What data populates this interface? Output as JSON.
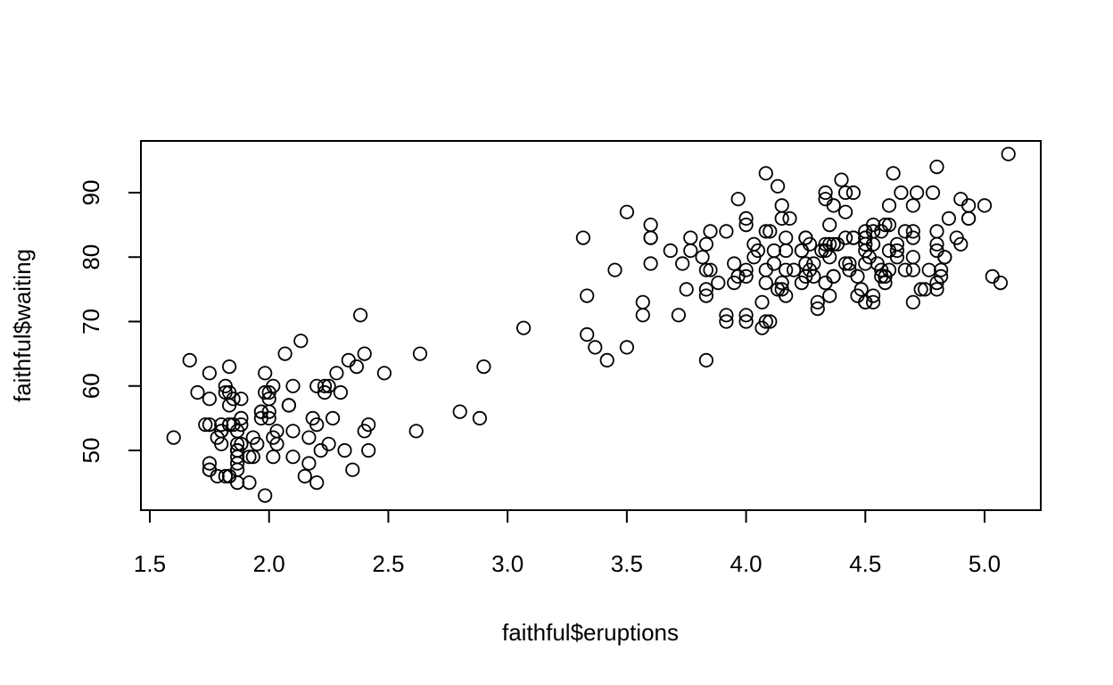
{
  "chart_data": {
    "type": "scatter",
    "title": "",
    "xlabel": "faithful$eruptions",
    "ylabel": "faithful$waiting",
    "xlim": [
      1.5,
      5.2
    ],
    "ylim": [
      41,
      97
    ],
    "grid": false,
    "marker": "open-circle",
    "colors": {
      "point": "#000000",
      "axis": "#000000",
      "background": "#ffffff"
    },
    "x_ticks": [
      1.5,
      2.0,
      2.5,
      3.0,
      3.5,
      4.0,
      4.5,
      5.0
    ],
    "x_tick_labels": [
      "1.5",
      "2.0",
      "2.5",
      "3.0",
      "3.5",
      "4.0",
      "4.5",
      "5.0"
    ],
    "y_ticks": [
      50,
      60,
      70,
      80,
      90
    ],
    "y_tick_labels": [
      "50",
      "60",
      "70",
      "80",
      "90"
    ],
    "series": [
      {
        "name": "faithful",
        "points": [
          [
            3.6,
            79
          ],
          [
            1.8,
            54
          ],
          [
            3.333,
            74
          ],
          [
            2.283,
            62
          ],
          [
            4.533,
            85
          ],
          [
            2.883,
            55
          ],
          [
            4.7,
            88
          ],
          [
            3.6,
            85
          ],
          [
            1.95,
            51
          ],
          [
            4.35,
            85
          ],
          [
            1.833,
            54
          ],
          [
            3.917,
            84
          ],
          [
            4.2,
            78
          ],
          [
            1.75,
            47
          ],
          [
            4.7,
            83
          ],
          [
            2.167,
            52
          ],
          [
            1.75,
            62
          ],
          [
            4.8,
            84
          ],
          [
            1.6,
            52
          ],
          [
            4.25,
            79
          ],
          [
            1.8,
            51
          ],
          [
            1.75,
            47
          ],
          [
            3.45,
            78
          ],
          [
            3.067,
            69
          ],
          [
            4.533,
            74
          ],
          [
            3.6,
            83
          ],
          [
            1.967,
            55
          ],
          [
            4.083,
            76
          ],
          [
            3.85,
            78
          ],
          [
            4.433,
            79
          ],
          [
            4.3,
            73
          ],
          [
            4.467,
            77
          ],
          [
            3.367,
            66
          ],
          [
            4.033,
            80
          ],
          [
            3.833,
            74
          ],
          [
            2.017,
            52
          ],
          [
            1.867,
            48
          ],
          [
            4.833,
            80
          ],
          [
            1.833,
            59
          ],
          [
            4.783,
            90
          ],
          [
            4.35,
            80
          ],
          [
            1.883,
            58
          ],
          [
            4.567,
            84
          ],
          [
            1.75,
            58
          ],
          [
            4.533,
            73
          ],
          [
            3.317,
            83
          ],
          [
            3.833,
            64
          ],
          [
            2.1,
            53
          ],
          [
            4.633,
            82
          ],
          [
            2.0,
            59
          ],
          [
            4.8,
            75
          ],
          [
            4.716,
            90
          ],
          [
            1.833,
            54
          ],
          [
            4.833,
            80
          ],
          [
            1.733,
            54
          ],
          [
            4.883,
            83
          ],
          [
            3.717,
            71
          ],
          [
            1.667,
            64
          ],
          [
            4.567,
            77
          ],
          [
            4.317,
            81
          ],
          [
            2.233,
            59
          ],
          [
            4.5,
            84
          ],
          [
            1.75,
            48
          ],
          [
            4.8,
            82
          ],
          [
            1.817,
            60
          ],
          [
            4.4,
            92
          ],
          [
            4.167,
            78
          ],
          [
            4.7,
            78
          ],
          [
            2.067,
            65
          ],
          [
            4.7,
            73
          ],
          [
            4.033,
            82
          ],
          [
            1.967,
            56
          ],
          [
            4.5,
            79
          ],
          [
            4.0,
            71
          ],
          [
            1.983,
            62
          ],
          [
            5.067,
            76
          ],
          [
            2.017,
            60
          ],
          [
            4.567,
            78
          ],
          [
            3.883,
            76
          ],
          [
            3.6,
            83
          ],
          [
            4.133,
            75
          ],
          [
            4.333,
            82
          ],
          [
            4.1,
            70
          ],
          [
            2.633,
            65
          ],
          [
            4.067,
            73
          ],
          [
            4.933,
            88
          ],
          [
            3.95,
            76
          ],
          [
            4.517,
            80
          ],
          [
            2.167,
            48
          ],
          [
            4.0,
            86
          ],
          [
            2.2,
            60
          ],
          [
            4.333,
            90
          ],
          [
            1.867,
            50
          ],
          [
            4.817,
            78
          ],
          [
            1.833,
            63
          ],
          [
            4.3,
            72
          ],
          [
            4.667,
            84
          ],
          [
            3.75,
            75
          ],
          [
            1.867,
            51
          ],
          [
            4.9,
            82
          ],
          [
            2.483,
            62
          ],
          [
            4.367,
            88
          ],
          [
            2.1,
            49
          ],
          [
            4.5,
            83
          ],
          [
            4.05,
            81
          ],
          [
            1.867,
            47
          ],
          [
            4.7,
            84
          ],
          [
            1.783,
            52
          ],
          [
            4.85,
            86
          ],
          [
            3.683,
            81
          ],
          [
            4.733,
            75
          ],
          [
            2.3,
            59
          ],
          [
            4.9,
            89
          ],
          [
            4.417,
            79
          ],
          [
            1.7,
            59
          ],
          [
            4.633,
            81
          ],
          [
            2.317,
            50
          ],
          [
            4.6,
            85
          ],
          [
            1.817,
            59
          ],
          [
            4.417,
            87
          ],
          [
            2.617,
            53
          ],
          [
            4.067,
            69
          ],
          [
            4.25,
            77
          ],
          [
            1.967,
            56
          ],
          [
            4.6,
            88
          ],
          [
            3.767,
            81
          ],
          [
            1.917,
            45
          ],
          [
            4.5,
            82
          ],
          [
            2.267,
            55
          ],
          [
            4.65,
            90
          ],
          [
            1.867,
            45
          ],
          [
            4.167,
            83
          ],
          [
            2.8,
            56
          ],
          [
            4.333,
            89
          ],
          [
            1.833,
            46
          ],
          [
            4.383,
            82
          ],
          [
            1.883,
            51
          ],
          [
            4.933,
            86
          ],
          [
            2.033,
            53
          ],
          [
            3.733,
            79
          ],
          [
            4.233,
            81
          ],
          [
            2.233,
            60
          ],
          [
            4.533,
            82
          ],
          [
            4.817,
            77
          ],
          [
            4.333,
            76
          ],
          [
            1.983,
            59
          ],
          [
            4.633,
            80
          ],
          [
            2.017,
            49
          ],
          [
            5.1,
            96
          ],
          [
            1.8,
            53
          ],
          [
            5.033,
            77
          ],
          [
            4.0,
            77
          ],
          [
            2.4,
            65
          ],
          [
            4.6,
            81
          ],
          [
            3.567,
            71
          ],
          [
            4.0,
            70
          ],
          [
            4.5,
            81
          ],
          [
            4.083,
            93
          ],
          [
            1.8,
            53
          ],
          [
            3.967,
            89
          ],
          [
            2.2,
            45
          ],
          [
            4.15,
            86
          ],
          [
            2.0,
            58
          ],
          [
            3.833,
            78
          ],
          [
            3.5,
            66
          ],
          [
            4.583,
            76
          ],
          [
            2.367,
            63
          ],
          [
            5.0,
            88
          ],
          [
            1.933,
            52
          ],
          [
            4.617,
            93
          ],
          [
            1.917,
            49
          ],
          [
            2.083,
            57
          ],
          [
            4.583,
            77
          ],
          [
            3.333,
            68
          ],
          [
            4.167,
            81
          ],
          [
            4.333,
            81
          ],
          [
            4.5,
            73
          ],
          [
            2.417,
            50
          ],
          [
            4.0,
            85
          ],
          [
            4.167,
            74
          ],
          [
            1.883,
            55
          ],
          [
            4.583,
            77
          ],
          [
            4.25,
            83
          ],
          [
            3.767,
            83
          ],
          [
            2.033,
            51
          ],
          [
            4.433,
            78
          ],
          [
            4.083,
            84
          ],
          [
            1.833,
            46
          ],
          [
            4.417,
            83
          ],
          [
            2.183,
            55
          ],
          [
            4.8,
            81
          ],
          [
            1.833,
            57
          ],
          [
            4.8,
            76
          ],
          [
            4.1,
            84
          ],
          [
            3.966,
            77
          ],
          [
            4.233,
            81
          ],
          [
            3.5,
            87
          ],
          [
            4.366,
            77
          ],
          [
            2.25,
            51
          ],
          [
            4.667,
            78
          ],
          [
            2.1,
            60
          ],
          [
            4.35,
            82
          ],
          [
            4.133,
            91
          ],
          [
            1.867,
            53
          ],
          [
            4.6,
            78
          ],
          [
            1.783,
            46
          ],
          [
            4.367,
            77
          ],
          [
            3.85,
            84
          ],
          [
            1.933,
            49
          ],
          [
            4.5,
            83
          ],
          [
            2.383,
            71
          ],
          [
            4.7,
            80
          ],
          [
            1.867,
            49
          ],
          [
            3.833,
            75
          ],
          [
            3.417,
            64
          ],
          [
            4.233,
            76
          ],
          [
            2.4,
            53
          ],
          [
            4.8,
            94
          ],
          [
            2.0,
            55
          ],
          [
            4.15,
            76
          ],
          [
            1.867,
            50
          ],
          [
            4.267,
            82
          ],
          [
            1.75,
            54
          ],
          [
            4.483,
            75
          ],
          [
            4.0,
            78
          ],
          [
            4.117,
            79
          ],
          [
            4.083,
            78
          ],
          [
            4.267,
            78
          ],
          [
            3.917,
            70
          ],
          [
            4.55,
            79
          ],
          [
            4.083,
            70
          ],
          [
            2.417,
            54
          ],
          [
            4.183,
            86
          ],
          [
            2.217,
            50
          ],
          [
            4.45,
            90
          ],
          [
            1.883,
            54
          ],
          [
            1.85,
            54
          ],
          [
            4.283,
            77
          ],
          [
            3.95,
            79
          ],
          [
            2.333,
            64
          ],
          [
            4.15,
            75
          ],
          [
            2.35,
            47
          ],
          [
            4.933,
            86
          ],
          [
            2.9,
            63
          ],
          [
            4.583,
            85
          ],
          [
            3.833,
            82
          ],
          [
            2.083,
            57
          ],
          [
            4.367,
            82
          ],
          [
            2.133,
            67
          ],
          [
            4.35,
            74
          ],
          [
            2.2,
            54
          ],
          [
            4.45,
            83
          ],
          [
            3.567,
            73
          ],
          [
            4.5,
            73
          ],
          [
            4.15,
            88
          ],
          [
            3.817,
            80
          ],
          [
            3.917,
            71
          ],
          [
            4.45,
            83
          ],
          [
            2.0,
            56
          ],
          [
            4.283,
            79
          ],
          [
            4.767,
            78
          ],
          [
            4.533,
            84
          ],
          [
            1.85,
            58
          ],
          [
            4.25,
            83
          ],
          [
            1.983,
            43
          ],
          [
            2.25,
            60
          ],
          [
            4.75,
            75
          ],
          [
            4.117,
            81
          ],
          [
            2.15,
            46
          ],
          [
            4.417,
            90
          ],
          [
            1.817,
            46
          ],
          [
            4.467,
            74
          ]
        ]
      }
    ]
  }
}
